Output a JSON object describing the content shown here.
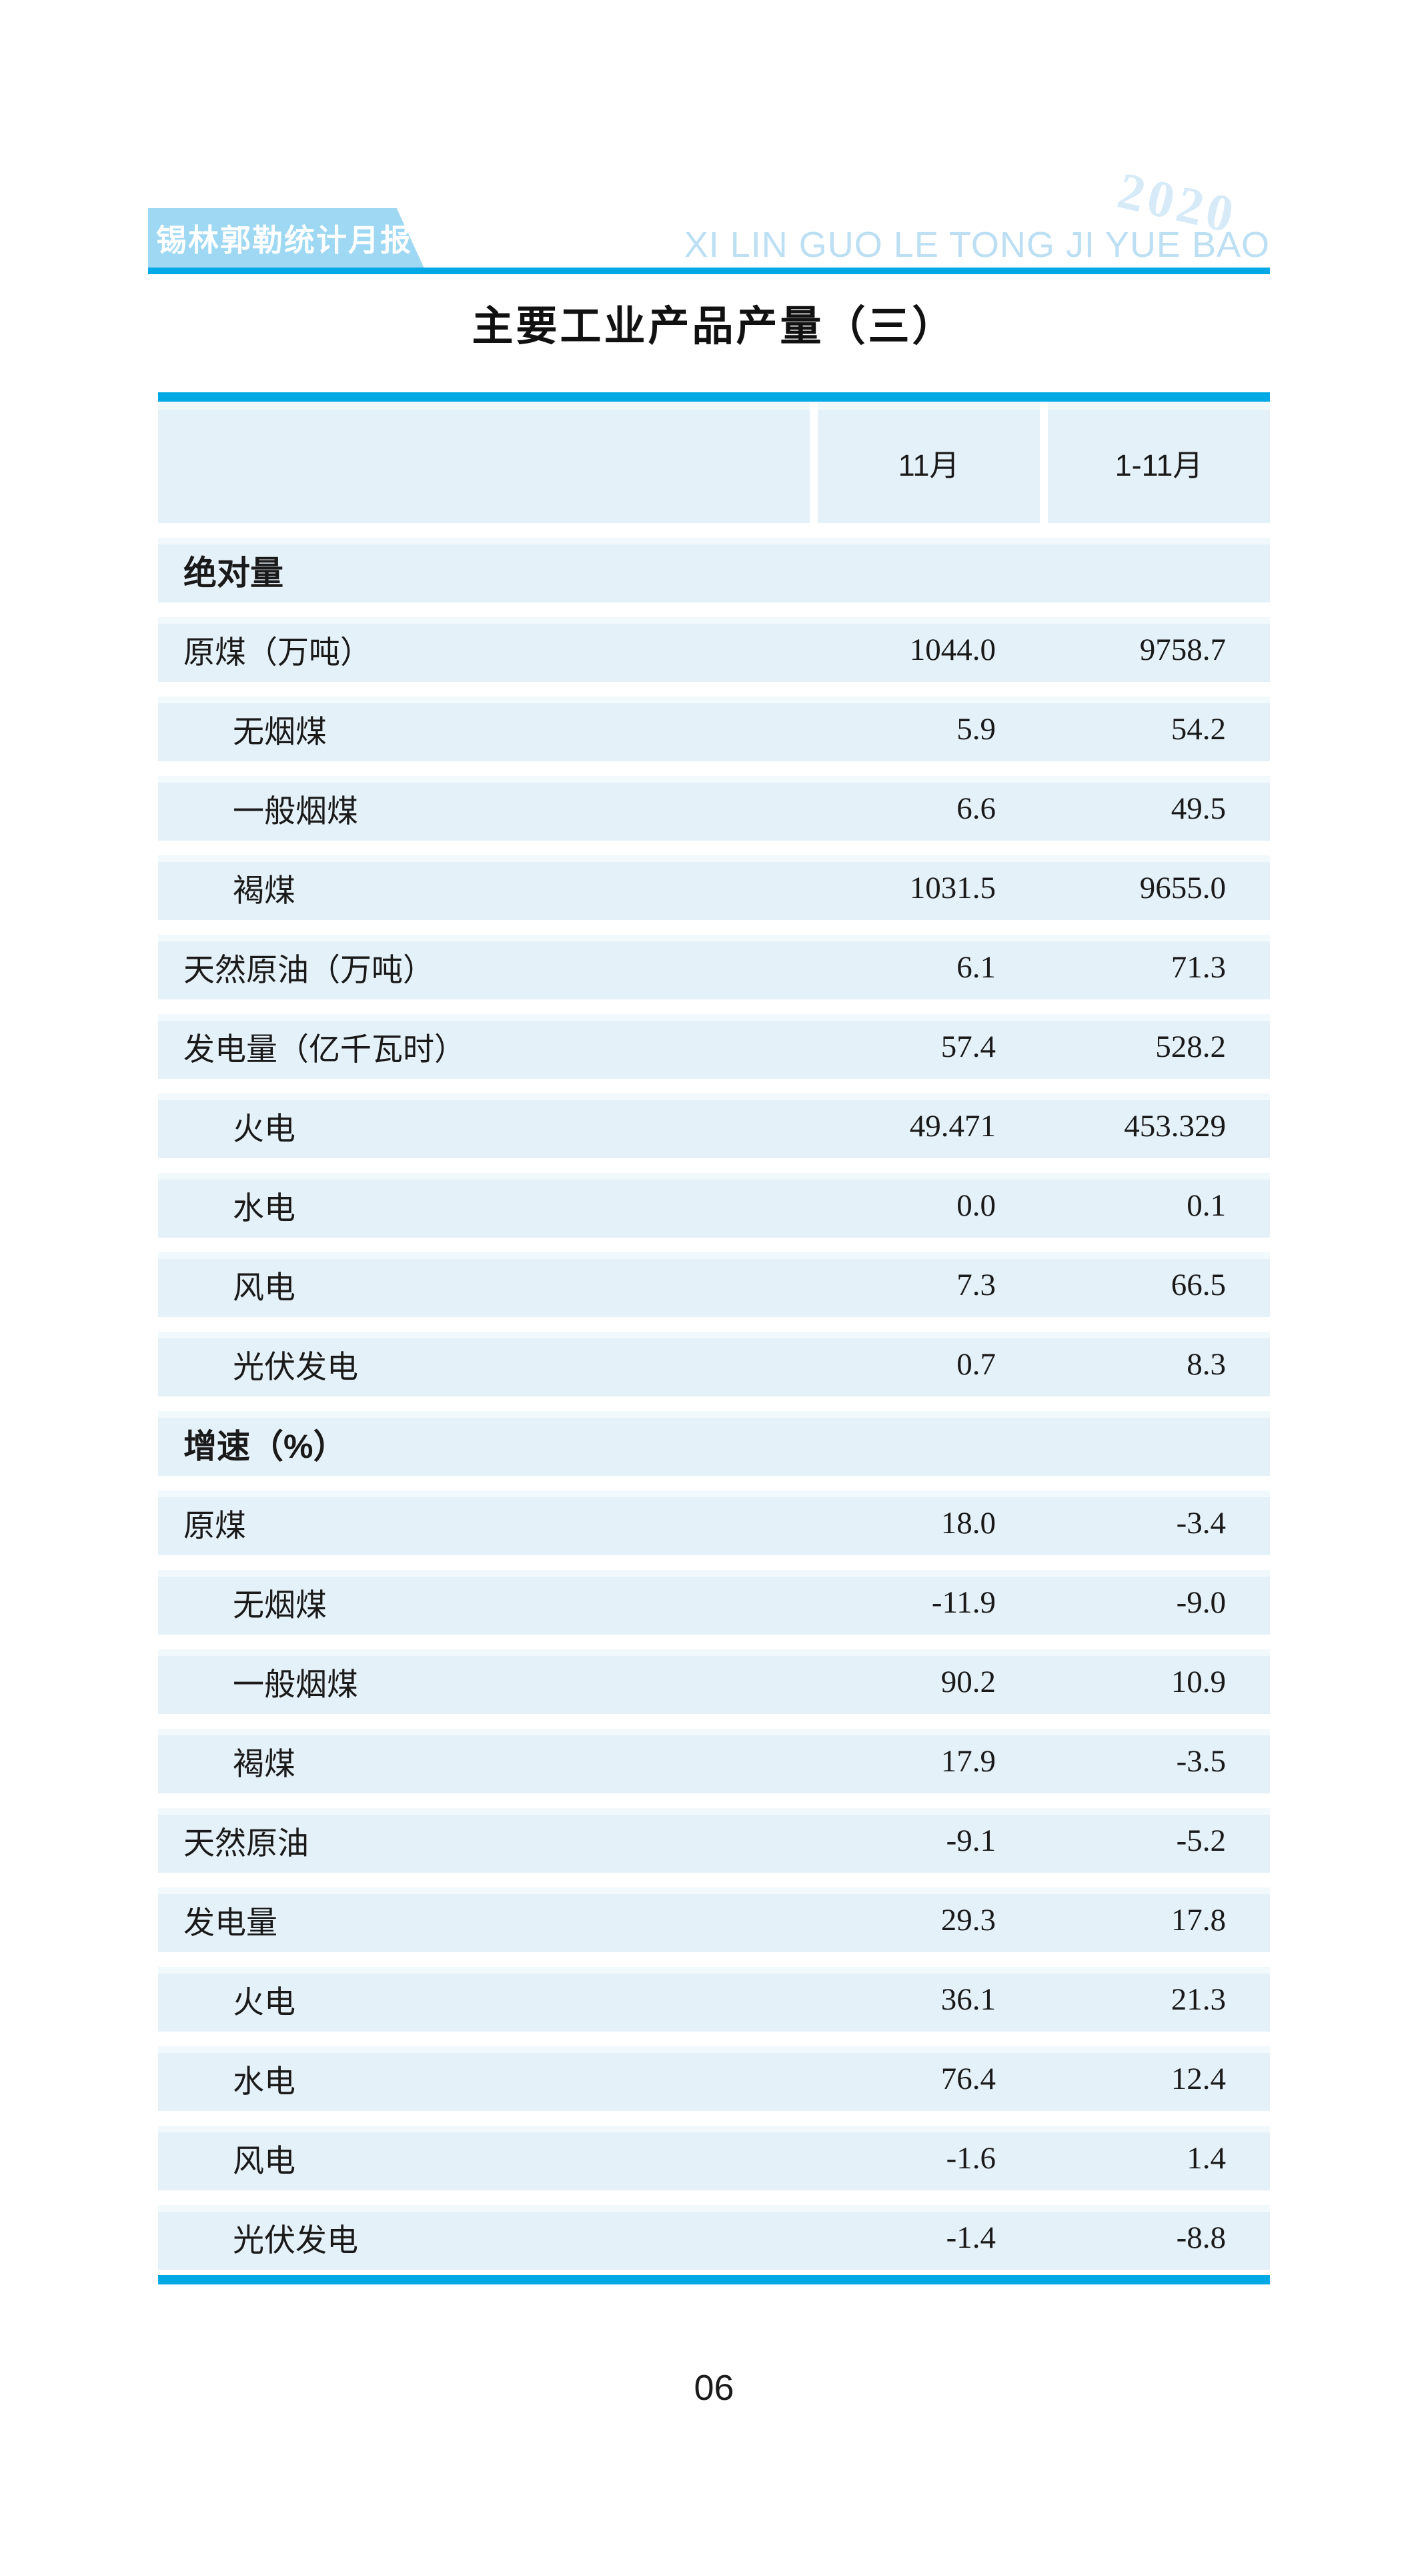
{
  "masthead": {
    "banner_title": "锡林郭勒统计月报",
    "year": "2020",
    "subtitle_pinyin": "XI LIN GUO LE TONG JI YUE BAO"
  },
  "page_title": "主要工业产品产量（三）",
  "page_number": "06",
  "table": {
    "columns": [
      "11月",
      "1-11月"
    ],
    "rows": [
      {
        "label": "绝对量",
        "type": "section",
        "indent": false,
        "values": [
          "",
          ""
        ]
      },
      {
        "label": "原煤（万吨）",
        "type": "item",
        "indent": false,
        "values": [
          "1044.0",
          "9758.7"
        ]
      },
      {
        "label": "无烟煤",
        "type": "item",
        "indent": true,
        "values": [
          "5.9",
          "54.2"
        ]
      },
      {
        "label": "一般烟煤",
        "type": "item",
        "indent": true,
        "values": [
          "6.6",
          "49.5"
        ]
      },
      {
        "label": "褐煤",
        "type": "item",
        "indent": true,
        "values": [
          "1031.5",
          "9655.0"
        ]
      },
      {
        "label": "天然原油（万吨）",
        "type": "item",
        "indent": false,
        "values": [
          "6.1",
          "71.3"
        ]
      },
      {
        "label": "发电量（亿千瓦时）",
        "type": "item",
        "indent": false,
        "values": [
          "57.4",
          "528.2"
        ]
      },
      {
        "label": "火电",
        "type": "item",
        "indent": true,
        "values": [
          "49.471",
          "453.329"
        ]
      },
      {
        "label": "水电",
        "type": "item",
        "indent": true,
        "values": [
          "0.0",
          "0.1"
        ]
      },
      {
        "label": "风电",
        "type": "item",
        "indent": true,
        "values": [
          "7.3",
          "66.5"
        ]
      },
      {
        "label": "光伏发电",
        "type": "item",
        "indent": true,
        "values": [
          "0.7",
          "8.3"
        ]
      },
      {
        "label": "增速（%）",
        "type": "section",
        "indent": false,
        "values": [
          "",
          ""
        ]
      },
      {
        "label": "原煤",
        "type": "item",
        "indent": false,
        "values": [
          "18.0",
          "-3.4"
        ]
      },
      {
        "label": "无烟煤",
        "type": "item",
        "indent": true,
        "values": [
          "-11.9",
          "-9.0"
        ]
      },
      {
        "label": "一般烟煤",
        "type": "item",
        "indent": true,
        "values": [
          "90.2",
          "10.9"
        ]
      },
      {
        "label": "褐煤",
        "type": "item",
        "indent": true,
        "values": [
          "17.9",
          "-3.5"
        ]
      },
      {
        "label": "天然原油",
        "type": "item",
        "indent": false,
        "values": [
          "-9.1",
          "-5.2"
        ]
      },
      {
        "label": "发电量",
        "type": "item",
        "indent": false,
        "values": [
          "29.3",
          "17.8"
        ]
      },
      {
        "label": "火电",
        "type": "item",
        "indent": true,
        "values": [
          "36.1",
          "21.3"
        ]
      },
      {
        "label": "水电",
        "type": "item",
        "indent": true,
        "values": [
          "76.4",
          "12.4"
        ]
      },
      {
        "label": "风电",
        "type": "item",
        "indent": true,
        "values": [
          "-1.6",
          "1.4"
        ]
      },
      {
        "label": "光伏发电",
        "type": "item",
        "indent": true,
        "values": [
          "-1.4",
          "-8.8"
        ]
      }
    ]
  },
  "colors": {
    "accent_blue": "#00A9E4",
    "banner_blue": "#9ED8F2",
    "row_bg": "#E5F1F9",
    "row_bg_highlight": "#F2F9FD",
    "year_text": "#D6EAF8",
    "pinyin_text": "#BCDFF3"
  }
}
